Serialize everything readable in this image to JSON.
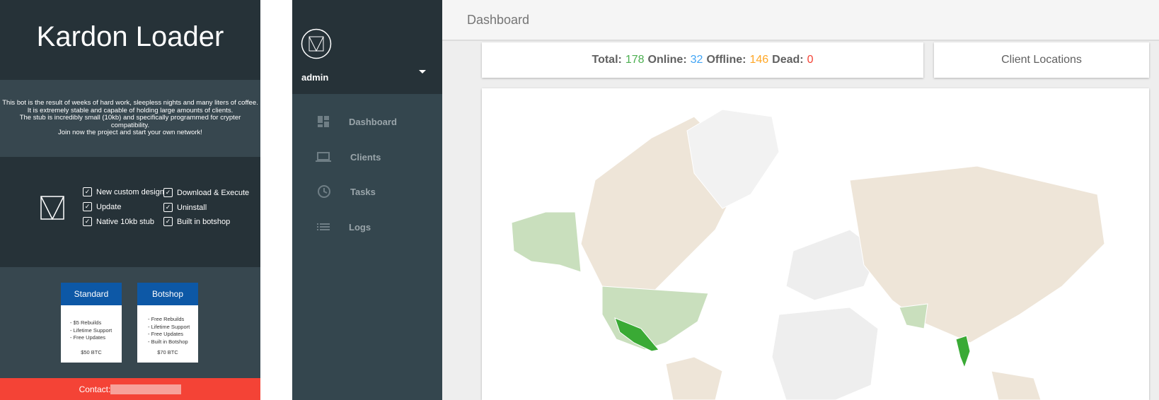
{
  "promo": {
    "title": "Kardon Loader",
    "description": [
      "This bot is the result of weeks of hard work, sleepless nights and many liters of coffee.",
      "It is extremely stable and capable of holding large amounts of clients.",
      "The stub is incredibly small (10kb) and specifically programmed for crypter compatibility.",
      "Join now the project and start your own network!"
    ],
    "features": [
      "New custom design",
      "Download & Execute",
      "Update",
      "Uninstall",
      "Native 10kb stub",
      "Built in botshop"
    ],
    "plans": [
      {
        "name": "Standard",
        "items": [
          "- $5 Rebuilds",
          "- Lifetime Support",
          "- Free Updates"
        ],
        "price": "$50 BTC"
      },
      {
        "name": "Botshop",
        "items": [
          "- Free Rebuilds",
          "- Lifetime Support",
          "- Free Updates",
          "- Built in Botshop"
        ],
        "price": "$70 BTC"
      }
    ],
    "contact": "Contact:"
  },
  "sidebar": {
    "user": "admin",
    "menu": [
      "Dashboard",
      "Clients",
      "Tasks",
      "Logs"
    ]
  },
  "header": {
    "title": "Dashboard"
  },
  "stats": [
    {
      "label": "Total:",
      "value": 178
    },
    {
      "label": "Online:",
      "value": 32
    },
    {
      "label": "Offline:",
      "value": 146
    },
    {
      "label": "Dead:",
      "value": 0
    }
  ],
  "map": {
    "title": "Client Locations"
  }
}
